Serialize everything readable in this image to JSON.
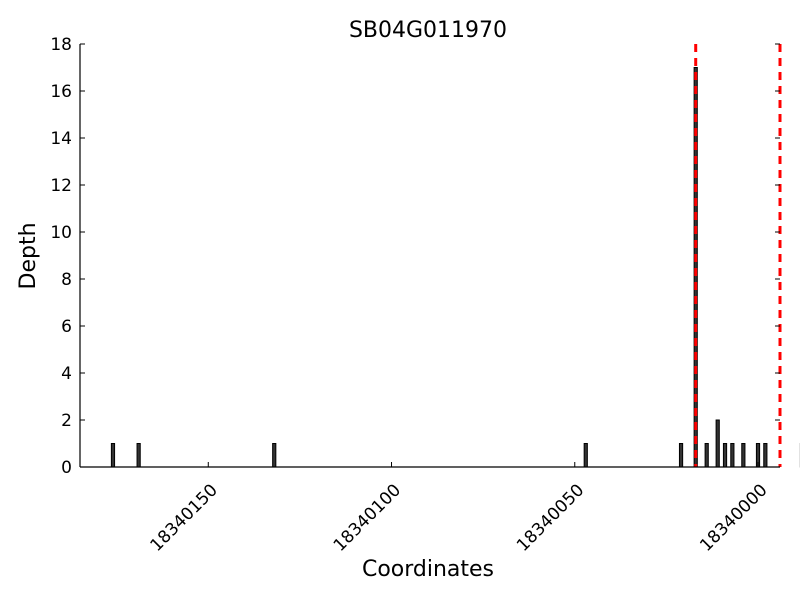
{
  "chart_data": {
    "type": "bar",
    "title": "SB04G011970",
    "xlabel": "Coordinates",
    "ylabel": "Depth",
    "xlim": [
      18340185,
      18339994
    ],
    "ylim": [
      0,
      18
    ],
    "x_reversed": true,
    "xticks": [
      18340150,
      18340100,
      18340050,
      18340000
    ],
    "xtick_labels": [
      "18340150",
      "18340100",
      "18340050",
      "18340000"
    ],
    "yticks": [
      0,
      2,
      4,
      6,
      8,
      10,
      12,
      14,
      16,
      18
    ],
    "ytick_labels": [
      "0",
      "2",
      "4",
      "6",
      "8",
      "10",
      "12",
      "14",
      "16",
      "18"
    ],
    "x": [
      18340176,
      18340169,
      18340132,
      18340047,
      18340021,
      18340017,
      18340014,
      18340011,
      18340009,
      18340007,
      18340004,
      18339998,
      18340000,
      18339988
    ],
    "values": [
      1,
      1,
      1,
      1,
      1,
      17,
      1,
      2,
      1,
      1,
      1,
      1,
      1,
      1
    ],
    "vertical_lines": [
      18340017,
      18339994
    ],
    "vertical_line_color": "#ff0000",
    "bar_color": "#333333",
    "grid": false
  }
}
